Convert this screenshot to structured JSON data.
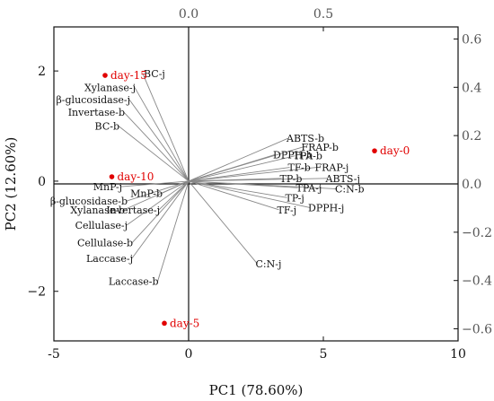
{
  "chart_data": {
    "type": "scatter",
    "subtype": "PCA biplot",
    "xlabel": "PC1 (78.60%)",
    "ylabel": "PC2 (12.60%)",
    "xlim": [
      -5,
      10
    ],
    "ylim": [
      -2.9,
      2.8
    ],
    "x_ticks": [
      -5,
      0,
      5,
      10
    ],
    "y_ticks": [
      -2,
      0,
      2
    ],
    "loading_axis": {
      "x_lim": [
        -0.5,
        1.0
      ],
      "y_lim": [
        -0.65,
        0.65
      ],
      "x_ticks": [
        "0.0",
        "0.5"
      ],
      "y_ticks": [
        "0.6",
        "0.4",
        "0.2",
        "0.0",
        "−0.2",
        "−0.4",
        "−0.6"
      ]
    },
    "axes_through_origin": true,
    "grid": false,
    "score_color": "#e10000",
    "vector_color": "#888888",
    "scores": [
      {
        "label": "day-0",
        "x": 6.9,
        "y": 0.55
      },
      {
        "label": "day-5",
        "x": -0.9,
        "y": -2.58
      },
      {
        "label": "day-10",
        "x": -2.85,
        "y": 0.08
      },
      {
        "label": "day-15",
        "x": -3.1,
        "y": 1.92
      }
    ],
    "loadings": [
      {
        "label": "BC-j",
        "x": -1.7,
        "y": 1.95
      },
      {
        "label": "Xylanase-j",
        "x": -2.0,
        "y": 1.7
      },
      {
        "label": "β-glucosidase-j",
        "x": -2.2,
        "y": 1.48
      },
      {
        "label": "Invertase-b",
        "x": -2.4,
        "y": 1.25
      },
      {
        "label": "BC-b",
        "x": -2.6,
        "y": 1.0
      },
      {
        "label": "ABTS-b",
        "x": 3.7,
        "y": 0.78
      },
      {
        "label": "FRAP-b",
        "x": 4.25,
        "y": 0.62
      },
      {
        "label": "DPPH-b",
        "x": 3.2,
        "y": 0.48
      },
      {
        "label": "TPA-b",
        "x": 3.95,
        "y": 0.46
      },
      {
        "label": "TF-b",
        "x": 3.75,
        "y": 0.25
      },
      {
        "label": "FRAP-j",
        "x": 4.75,
        "y": 0.25
      },
      {
        "label": "TP-b",
        "x": 3.45,
        "y": 0.05
      },
      {
        "label": "ABTS-j",
        "x": 5.15,
        "y": 0.05
      },
      {
        "label": "TPA-j",
        "x": 4.05,
        "y": -0.12
      },
      {
        "label": "C:N-b",
        "x": 5.5,
        "y": -0.14
      },
      {
        "label": "TP-j",
        "x": 3.65,
        "y": -0.3
      },
      {
        "label": "DPPH-j",
        "x": 4.5,
        "y": -0.48
      },
      {
        "label": "TF-j",
        "x": 3.35,
        "y": -0.52
      },
      {
        "label": "C:N-j",
        "x": 2.55,
        "y": -1.5
      },
      {
        "label": "MnP-j",
        "x": -2.5,
        "y": -0.1
      },
      {
        "label": "MnP-b",
        "x": -1.0,
        "y": -0.22
      },
      {
        "label": "β-glucosidase-b",
        "x": -2.3,
        "y": -0.36
      },
      {
        "label": "Invertase-j",
        "x": -1.1,
        "y": -0.52
      },
      {
        "label": "Xylanase-b",
        "x": -2.4,
        "y": -0.52
      },
      {
        "label": "Cellulase-j",
        "x": -2.3,
        "y": -0.8
      },
      {
        "label": "Cellulase-b",
        "x": -2.1,
        "y": -1.12
      },
      {
        "label": "Laccase-j",
        "x": -2.1,
        "y": -1.4
      },
      {
        "label": "Laccase-b",
        "x": -1.15,
        "y": -1.82
      }
    ]
  }
}
